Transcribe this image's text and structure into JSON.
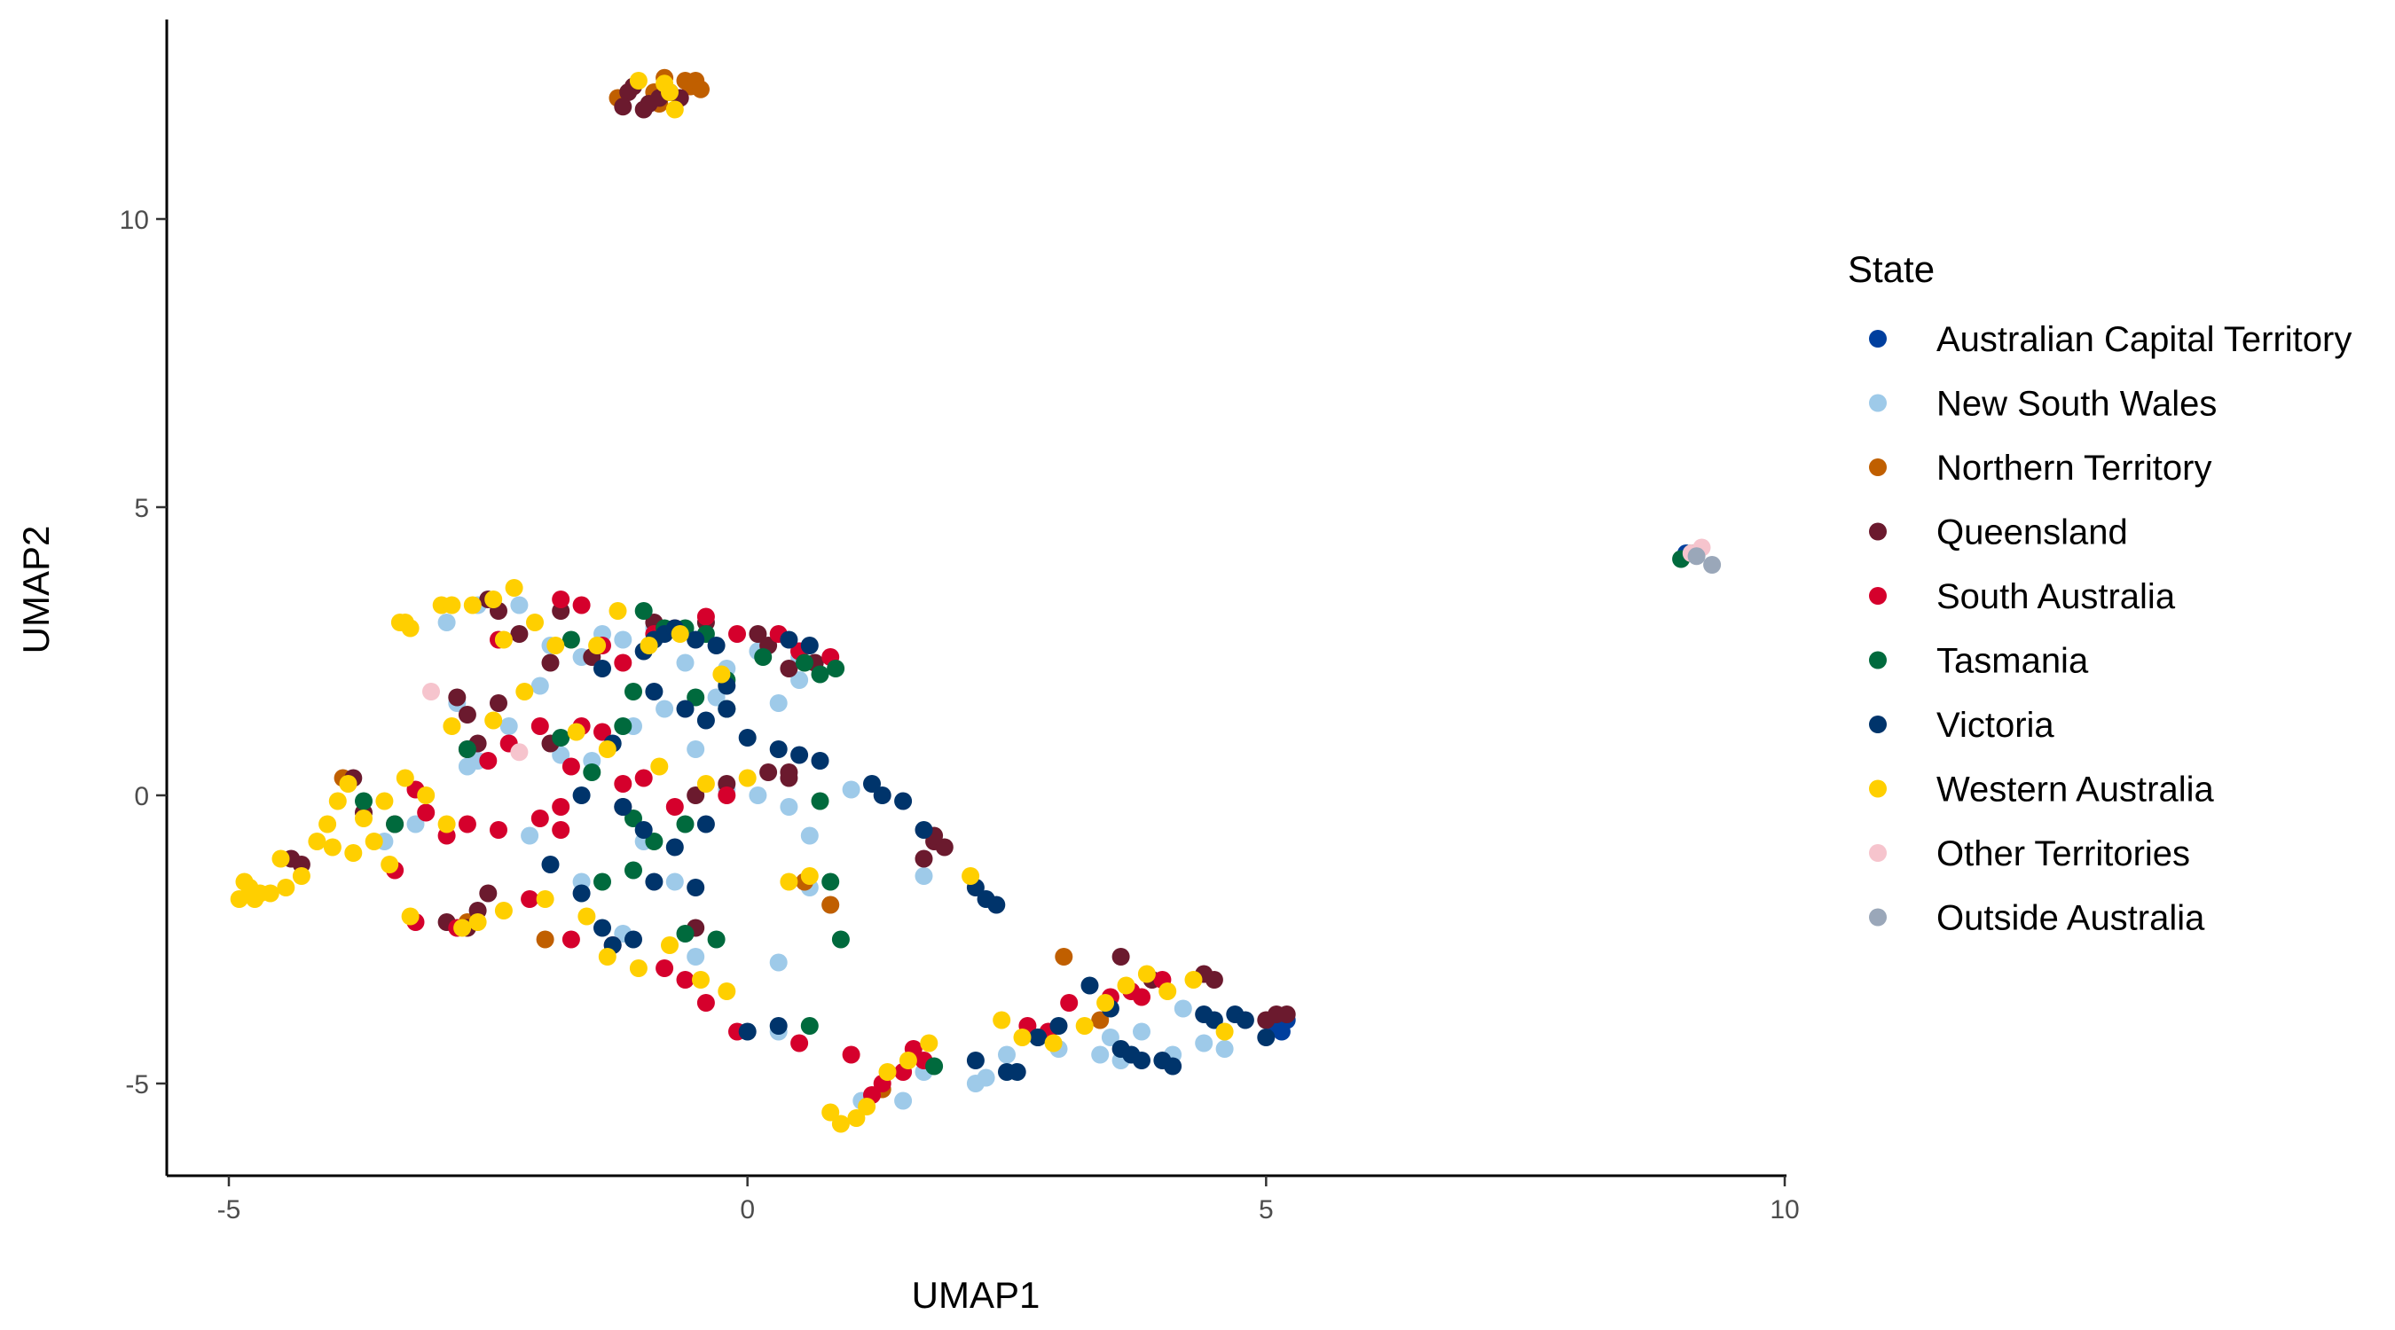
{
  "chart_data": {
    "type": "scatter",
    "title": "",
    "xlabel": "UMAP1",
    "ylabel": "UMAP2",
    "xlim": [
      -5.6,
      10
    ],
    "ylim": [
      -6.5,
      13.5
    ],
    "xticks": [
      -5,
      0,
      5,
      10
    ],
    "yticks": [
      -5,
      0,
      5,
      10
    ],
    "xtick_labels": [
      "-5",
      "0",
      "5",
      "10"
    ],
    "ytick_labels": [
      "-5",
      "0",
      "5",
      "10"
    ],
    "grid": false,
    "legend": {
      "title": "State",
      "position": "right"
    },
    "series": [
      {
        "name": "Australian Capital Territory",
        "color": "#003F9E",
        "x": [
          5.1,
          5.2,
          9.05,
          5.15
        ],
        "y": [
          -4.0,
          -3.9,
          4.2,
          -4.1
        ]
      },
      {
        "name": "New South Wales",
        "color": "#9ECAE9",
        "x": [
          -2.9,
          -2.6,
          -2.2,
          -1.9,
          -1.6,
          -1.4,
          -1.2,
          -0.9,
          -0.6,
          -0.3,
          -0.2,
          0.1,
          0.3,
          0.5,
          0.7,
          1.0,
          -2.8,
          -2.3,
          -1.8,
          -1.5,
          -1.1,
          -0.8,
          -0.5,
          -0.2,
          0.1,
          0.4,
          0.6,
          -3.5,
          -3.2,
          -2.7,
          -2.1,
          -1.6,
          -1.0,
          -0.7,
          0.3,
          0.6,
          0.8,
          1.1,
          1.5,
          1.7,
          2.3,
          2.5,
          3.0,
          3.4,
          3.6,
          3.8,
          4.1,
          4.4,
          4.6,
          2.2,
          1.7,
          -1.2,
          -0.5,
          0.3,
          -2.6,
          -2.0,
          3.5,
          4.2,
          0.5,
          2.3
        ],
        "y": [
          3.0,
          3.3,
          3.3,
          2.6,
          2.4,
          2.8,
          2.7,
          2.9,
          2.3,
          1.7,
          2.2,
          2.5,
          1.6,
          2.4,
          0.6,
          0.1,
          1.6,
          1.2,
          0.7,
          0.6,
          1.2,
          1.5,
          0.8,
          0.1,
          0.0,
          -0.2,
          -0.7,
          -0.8,
          -0.5,
          0.5,
          -0.7,
          -1.5,
          -0.8,
          -1.5,
          -2.9,
          -1.6,
          -1.9,
          -5.3,
          -5.3,
          -4.8,
          -4.9,
          -4.5,
          -4.4,
          -4.5,
          -4.6,
          -4.1,
          -4.5,
          -4.3,
          -4.4,
          -5.0,
          -1.4,
          -2.4,
          -2.8,
          -4.1,
          0.6,
          1.9,
          -4.2,
          -3.7,
          2.0,
          -1.8
        ]
      },
      {
        "name": "Northern Territory",
        "color": "#C05F00",
        "x": [
          -1.25,
          -0.9,
          -0.8,
          -0.6,
          -0.55,
          -0.5,
          -0.45,
          -0.85,
          -1.95,
          0.8,
          0.55,
          1.3,
          3.05,
          3.4,
          -2.7,
          -3.9
        ],
        "y": [
          12.1,
          12.2,
          12.45,
          12.4,
          12.3,
          12.4,
          12.25,
          12.0,
          -2.5,
          -1.9,
          -1.5,
          -5.1,
          -2.8,
          -3.9,
          -2.2,
          0.3
        ]
      },
      {
        "name": "Queensland",
        "color": "#6B1A2E",
        "x": [
          -1.15,
          -1.1,
          -1.0,
          -0.95,
          -0.85,
          -0.75,
          -0.65,
          -1.2,
          -2.5,
          -2.4,
          -2.2,
          -1.8,
          -1.5,
          -0.9,
          -0.4,
          0.1,
          0.2,
          0.4,
          0.5,
          0.65,
          -2.8,
          -2.7,
          -2.4,
          -1.9,
          -2.7,
          -2.6,
          -1.2,
          -0.5,
          -0.2,
          0.2,
          0.4,
          -3.8,
          -3.7,
          -3.4,
          -4.3,
          -4.4,
          -2.6,
          -2.5,
          -0.5,
          1.7,
          1.8,
          1.9,
          3.6,
          3.9,
          4.4,
          4.5,
          5.0,
          5.1,
          5.2,
          -2.7,
          0.4,
          1.8,
          -1.9,
          -2.9
        ],
        "y": [
          12.2,
          12.3,
          11.9,
          12.0,
          12.1,
          12.2,
          12.1,
          11.95,
          3.4,
          3.2,
          2.8,
          3.2,
          2.4,
          3.0,
          3.0,
          2.8,
          2.6,
          2.2,
          2.5,
          2.3,
          1.7,
          1.4,
          1.6,
          0.9,
          0.8,
          0.9,
          -0.2,
          0.0,
          0.2,
          0.4,
          0.3,
          0.3,
          -0.3,
          -0.5,
          -1.2,
          -1.1,
          -2.0,
          -1.7,
          -2.3,
          -1.1,
          -0.8,
          -0.9,
          -2.8,
          -3.2,
          -3.1,
          -3.2,
          -3.9,
          -3.8,
          -3.8,
          -2.3,
          0.4,
          -0.7,
          2.3,
          -2.2
        ]
      },
      {
        "name": "South Australia",
        "color": "#D5002C",
        "x": [
          -1.8,
          -1.6,
          -1.4,
          -1.2,
          -0.9,
          -0.7,
          -0.4,
          -0.1,
          0.3,
          0.5,
          0.8,
          -2.3,
          -2.5,
          -2.0,
          -1.7,
          -1.4,
          -1.2,
          -1.0,
          -0.7,
          -3.1,
          -2.9,
          -2.7,
          -2.4,
          -2.0,
          -1.8,
          -3.4,
          -3.2,
          -2.8,
          -2.1,
          -1.7,
          -1.3,
          -0.8,
          -0.4,
          -0.1,
          0.5,
          1.0,
          1.2,
          1.3,
          1.5,
          1.7,
          1.6,
          2.9,
          3.1,
          3.5,
          3.7,
          3.8,
          4.0,
          -0.6,
          -0.2,
          -1.6,
          -1.8,
          -3.2,
          -2.4,
          2.7
        ],
        "y": [
          3.4,
          3.3,
          2.6,
          2.3,
          2.8,
          2.9,
          3.1,
          2.8,
          2.8,
          2.5,
          2.4,
          0.9,
          0.6,
          1.2,
          0.5,
          1.1,
          0.2,
          0.3,
          -0.2,
          -0.3,
          -0.7,
          -0.5,
          -0.6,
          -0.4,
          -0.6,
          -1.3,
          -2.2,
          -2.3,
          -1.8,
          -2.5,
          -2.6,
          -3.0,
          -3.6,
          -4.1,
          -4.3,
          -4.5,
          -5.2,
          -5.0,
          -4.8,
          -4.6,
          -4.4,
          -4.1,
          -3.6,
          -3.5,
          -3.4,
          -3.5,
          -3.2,
          -3.2,
          0.0,
          1.2,
          -0.2,
          0.1,
          2.7,
          -4.0
        ]
      },
      {
        "name": "Tasmania",
        "color": "#006A3D",
        "x": [
          -1.0,
          -0.8,
          -0.6,
          -0.4,
          -0.2,
          0.15,
          0.55,
          0.7,
          0.85,
          -1.7,
          -1.1,
          -0.5,
          -0.2,
          -2.7,
          -1.8,
          -1.5,
          -1.1,
          -0.9,
          -0.6,
          -3.4,
          -3.7,
          -1.4,
          -1.1,
          -0.3,
          0.7,
          0.9,
          -0.6,
          0.6,
          9.0,
          9.1,
          1.8,
          0.8,
          2.8,
          -1.2
        ],
        "y": [
          3.2,
          2.9,
          2.9,
          2.8,
          2.0,
          2.4,
          2.3,
          2.1,
          2.2,
          2.7,
          1.8,
          1.7,
          1.5,
          0.8,
          1.0,
          0.4,
          -0.4,
          -0.8,
          -0.5,
          -0.5,
          -0.1,
          -1.5,
          -1.3,
          -2.5,
          -0.1,
          -2.5,
          -2.4,
          -4.0,
          4.1,
          4.2,
          -4.7,
          -1.5,
          -4.2,
          1.2
        ],
        "y_note": ""
      },
      {
        "name": "Victoria",
        "color": "#00346B",
        "x": [
          -0.9,
          -0.8,
          -0.7,
          -0.5,
          -0.3,
          -0.2,
          0.4,
          0.6,
          -1.0,
          -1.4,
          -1.3,
          -0.9,
          -0.6,
          -0.4,
          -0.2,
          0.0,
          0.3,
          0.5,
          0.7,
          1.2,
          1.5,
          1.7,
          -1.6,
          -1.2,
          -1.0,
          -0.7,
          -0.4,
          -1.9,
          -1.6,
          -1.4,
          -1.3,
          -1.1,
          -0.9,
          -0.5,
          2.2,
          2.3,
          2.4,
          2.2,
          2.5,
          2.6,
          2.8,
          3.0,
          3.3,
          3.5,
          3.6,
          3.7,
          3.8,
          4.0,
          4.1,
          4.4,
          4.5,
          4.7,
          4.8,
          5.0,
          0.0,
          0.3,
          1.3
        ],
        "y": [
          2.7,
          2.8,
          2.9,
          2.7,
          2.6,
          1.9,
          2.7,
          2.6,
          2.5,
          2.2,
          0.9,
          1.8,
          1.5,
          1.3,
          1.5,
          1.0,
          0.8,
          0.7,
          0.6,
          0.2,
          -0.1,
          -0.6,
          0.0,
          -0.2,
          -0.6,
          -0.9,
          -0.5,
          -1.2,
          -1.7,
          -2.3,
          -2.6,
          -2.5,
          -1.5,
          -1.6,
          -1.6,
          -1.8,
          -1.9,
          -4.6,
          -4.8,
          -4.8,
          -4.2,
          -4.0,
          -3.3,
          -3.7,
          -4.4,
          -4.5,
          -4.6,
          -4.6,
          -4.7,
          -3.8,
          -3.9,
          -3.8,
          -3.9,
          -4.2,
          -4.1,
          -4.0,
          0.0
        ]
      },
      {
        "name": "Western Australia",
        "color": "#FFCF00",
        "x": [
          -0.8,
          -0.7,
          -1.05,
          -0.75,
          -3.35,
          -3.3,
          -3.25,
          -2.95,
          -2.85,
          -2.65,
          -2.45,
          -2.25,
          -2.05,
          -1.85,
          -1.45,
          -1.25,
          -0.95,
          -0.65,
          -0.25,
          -2.15,
          -2.35,
          -2.85,
          -2.45,
          -1.65,
          -1.35,
          -0.85,
          -0.4,
          0.0,
          -3.95,
          -3.85,
          -3.7,
          -3.5,
          -3.3,
          -3.1,
          -2.9,
          -4.05,
          -4.15,
          -4.0,
          -3.8,
          -3.6,
          -3.45,
          -4.3,
          -4.45,
          -4.6,
          -4.7,
          -4.75,
          -4.8,
          -4.85,
          -4.9,
          -4.5,
          -3.25,
          -2.75,
          -2.6,
          -2.35,
          -1.95,
          -1.55,
          -1.35,
          -1.05,
          -0.75,
          -0.45,
          -0.2,
          0.4,
          0.6,
          0.8,
          0.9,
          1.05,
          1.15,
          1.35,
          1.55,
          1.75,
          2.15,
          2.45,
          2.65,
          2.95,
          3.25,
          3.45,
          3.65,
          3.85,
          4.05,
          4.3,
          4.6
        ],
        "y": [
          12.35,
          11.9,
          12.4,
          12.2,
          3.0,
          3.0,
          2.9,
          3.3,
          3.3,
          3.3,
          3.4,
          3.6,
          3.0,
          2.6,
          2.6,
          3.2,
          2.6,
          2.8,
          2.1,
          1.8,
          2.7,
          1.2,
          1.3,
          1.1,
          0.8,
          0.5,
          0.2,
          0.3,
          -0.1,
          0.2,
          -0.4,
          -0.1,
          0.3,
          0.0,
          -0.5,
          -0.5,
          -0.8,
          -0.9,
          -1.0,
          -0.8,
          -1.2,
          -1.4,
          -1.6,
          -1.7,
          -1.7,
          -1.8,
          -1.6,
          -1.5,
          -1.8,
          -1.1,
          -2.1,
          -2.3,
          -2.2,
          -2.0,
          -1.8,
          -2.1,
          -2.8,
          -3.0,
          -2.6,
          -3.2,
          -3.4,
          -1.5,
          -1.4,
          -5.5,
          -5.7,
          -5.6,
          -5.4,
          -4.8,
          -4.6,
          -4.3,
          -1.4,
          -3.9,
          -4.2,
          -4.3,
          -4.0,
          -3.6,
          -3.3,
          -3.1,
          -3.4,
          -3.2,
          -4.1
        ]
      },
      {
        "name": "Other Territories",
        "color": "#F6C4CD",
        "x": [
          -3.05,
          -2.2,
          9.1,
          9.2
        ],
        "y": [
          1.8,
          0.75,
          4.2,
          4.3
        ]
      },
      {
        "name": "Outside Australia",
        "color": "#9AA7B9",
        "x": [
          9.15,
          9.3
        ],
        "y": [
          4.15,
          4.0
        ]
      }
    ]
  }
}
